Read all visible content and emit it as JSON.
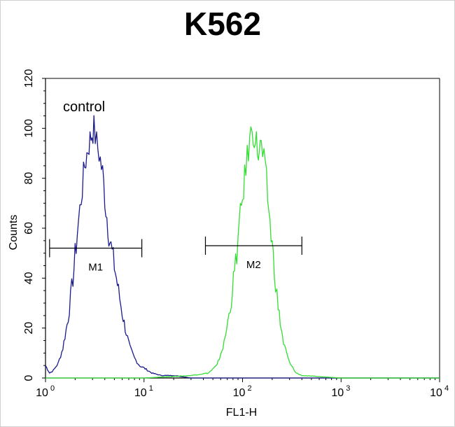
{
  "chart_data": {
    "type": "line",
    "title": "K562",
    "xlabel": "FL1-H",
    "ylabel": "Counts",
    "x_scale": "log",
    "xlim": [
      1,
      10000
    ],
    "ylim": [
      0,
      120
    ],
    "x_ticks": [
      {
        "base": "10",
        "exp": "0"
      },
      {
        "base": "10",
        "exp": "1"
      },
      {
        "base": "10",
        "exp": "2"
      },
      {
        "base": "10",
        "exp": "3"
      },
      {
        "base": "10",
        "exp": "4"
      }
    ],
    "y_ticks": [
      "0",
      "20",
      "40",
      "60",
      "80",
      "100",
      "120"
    ],
    "y_tick_values": [
      0,
      20,
      40,
      60,
      80,
      100,
      120
    ],
    "annotation": "control",
    "markers": [
      {
        "label": "M1",
        "x_range": [
          1.1,
          9.5
        ],
        "y": 52
      },
      {
        "label": "M2",
        "x_range": [
          42,
          400
        ],
        "y": 53
      }
    ],
    "series": [
      {
        "color": "#1a1a8c",
        "x": [
          1.0,
          1.1,
          1.2,
          1.35,
          1.5,
          1.7,
          1.9,
          2.1,
          2.3,
          2.5,
          2.7,
          2.9,
          3.1,
          3.3,
          3.5,
          3.8,
          4.1,
          4.5,
          5.0,
          5.5,
          6.0,
          6.6,
          7.2,
          8.0,
          9.0,
          10.0,
          12.0,
          15.0,
          20.0,
          30.0,
          50.0,
          100.0,
          200.0,
          1000.0,
          10000.0
        ],
        "y": [
          5,
          2,
          3,
          6,
          12,
          24,
          40,
          58,
          72,
          85,
          92,
          97,
          100,
          94,
          90,
          82,
          68,
          55,
          45,
          35,
          26,
          18,
          12,
          8,
          5,
          4,
          2,
          1,
          1,
          0,
          0,
          0,
          0,
          0,
          0
        ]
      },
      {
        "color": "#33dd33",
        "x": [
          1.0,
          10.0,
          30.0,
          45.0,
          55.0,
          65.0,
          75.0,
          85.0,
          95.0,
          105.0,
          115.0,
          125.0,
          135.0,
          145.0,
          155.0,
          165.0,
          175.0,
          190.0,
          210.0,
          230.0,
          260.0,
          300.0,
          350.0,
          400.0,
          1000.0,
          10000.0
        ],
        "y": [
          0,
          0,
          1,
          2,
          5,
          14,
          28,
          46,
          64,
          80,
          92,
          100,
          96,
          90,
          93,
          86,
          78,
          62,
          44,
          28,
          14,
          6,
          2,
          1,
          0,
          0
        ]
      }
    ]
  }
}
